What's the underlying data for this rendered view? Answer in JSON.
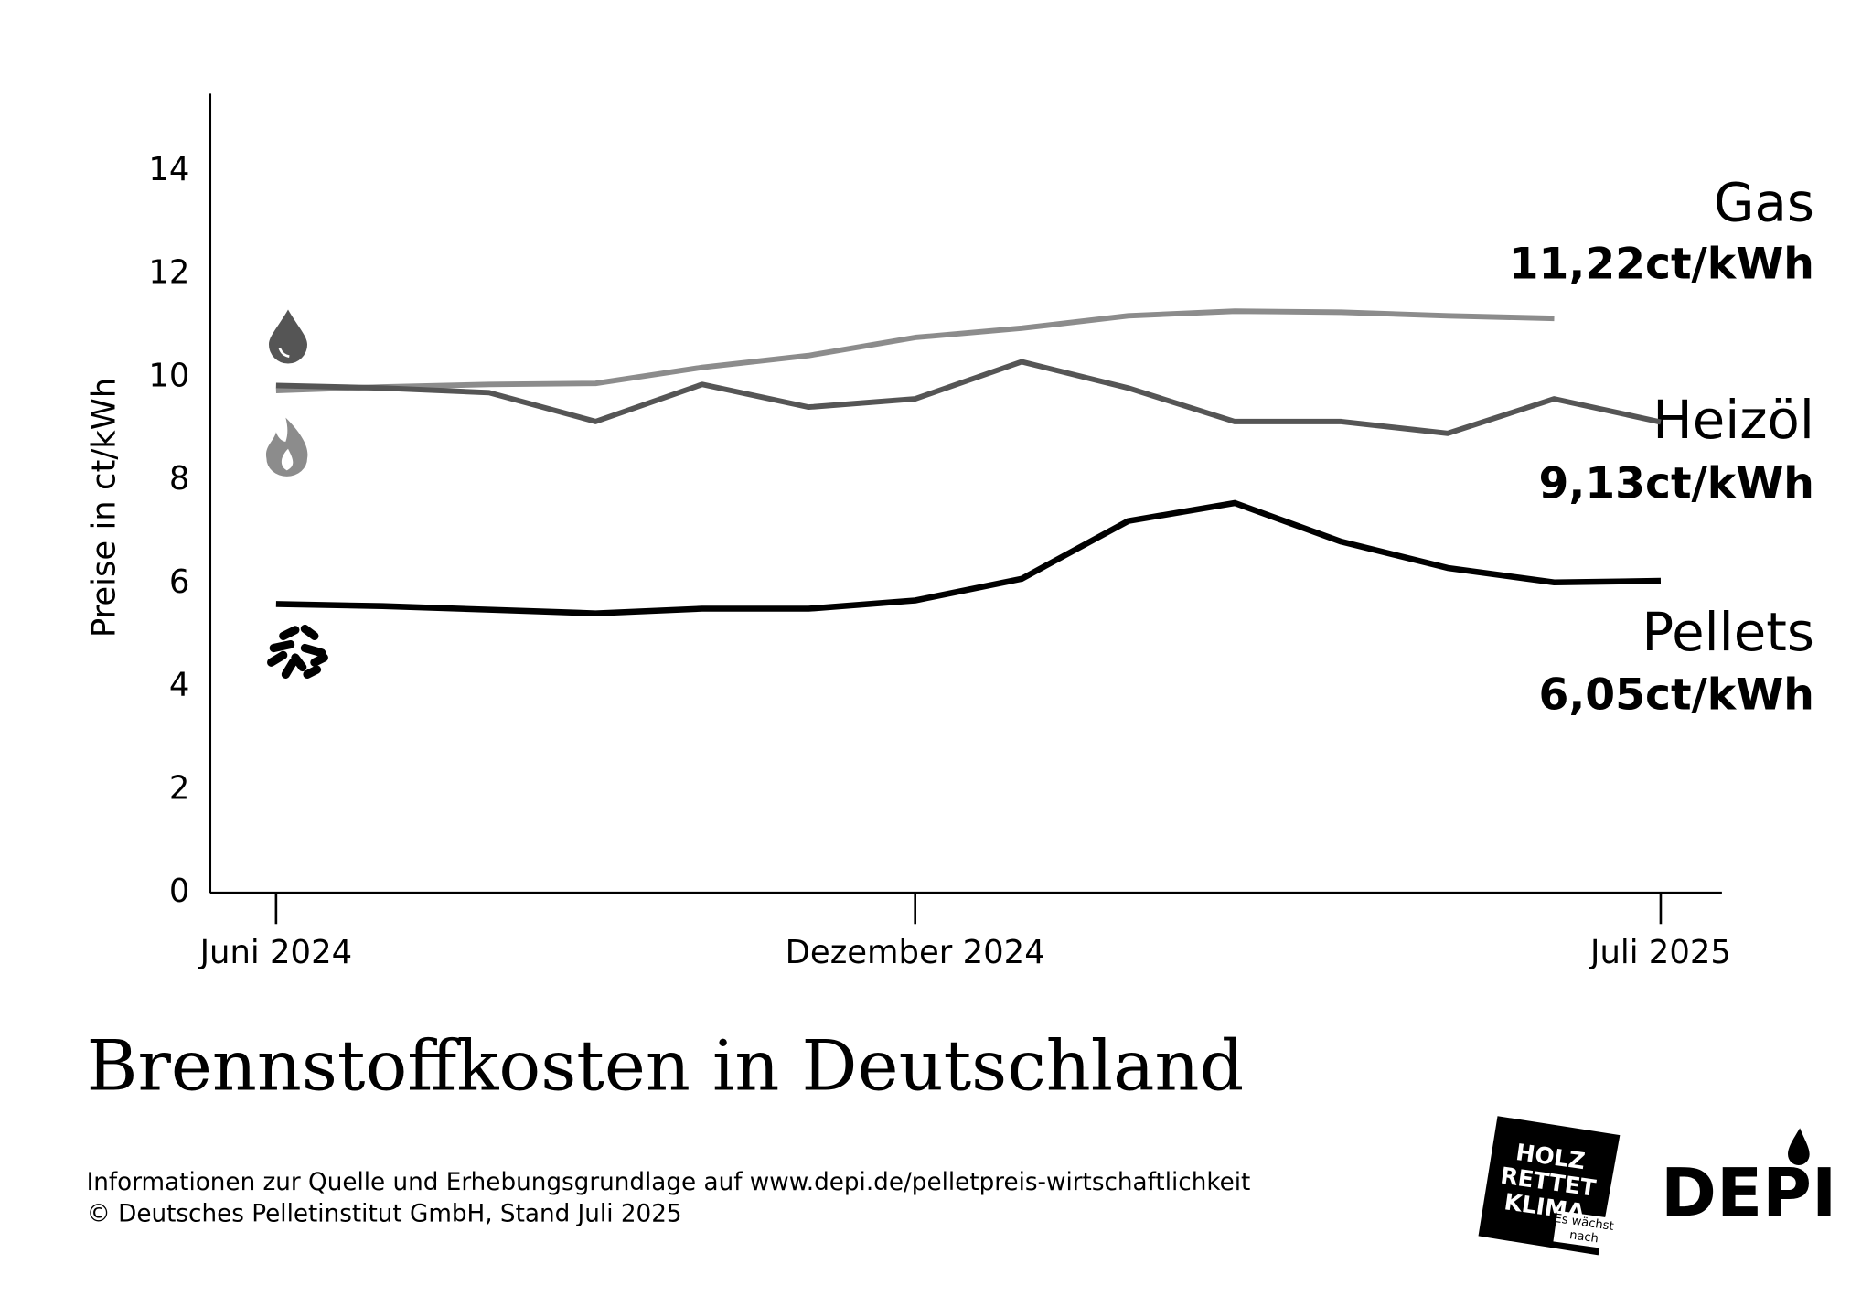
{
  "chart_data": {
    "type": "line",
    "title": "Brennstoffkosten in Deutschland",
    "y_label": "Preise in ct/kWh",
    "categories": [
      "Juni 2024",
      null,
      null,
      null,
      null,
      null,
      "Dezember 2024",
      null,
      null,
      null,
      null,
      null,
      null,
      "Juli 2025"
    ],
    "series": [
      {
        "name": "Gas",
        "color": "#8c8c8c",
        "values": [
          9.74,
          9.81,
          9.86,
          9.88,
          10.19,
          10.42,
          10.77,
          10.95,
          11.19,
          11.28,
          11.26,
          11.19,
          11.14,
          null
        ]
      },
      {
        "name": "Heizöl",
        "color": "#555555",
        "values": [
          9.84,
          9.79,
          9.7,
          9.14,
          9.86,
          9.42,
          9.58,
          10.3,
          9.79,
          9.14,
          9.14,
          8.91,
          9.58,
          9.13
        ]
      },
      {
        "name": "Pellets",
        "color": "#000000",
        "values": [
          5.6,
          5.56,
          5.49,
          5.42,
          5.51,
          5.51,
          5.67,
          6.09,
          7.21,
          7.56,
          6.81,
          6.3,
          6.02,
          6.05
        ]
      }
    ],
    "annotations": [
      "11,22ct/kWh",
      "9,13ct/kWh",
      "6,05ct/kWh"
    ],
    "ylim": [
      0,
      15.5
    ],
    "yticks": [
      0,
      2,
      4,
      6,
      8,
      10,
      12,
      14
    ],
    "grid": false,
    "footer": [
      "Informationen zur Quelle und Erhebungsgrundlage auf www.depi.de/pelletpreis-wirtschaftlichkeit",
      "© Deutsches Pelletinstitut GmbH, Stand Juli 2025"
    ],
    "logos": [
      "HOLZ",
      "RETTET",
      "KLIMA",
      "Es wächst",
      "nach",
      "DEPI"
    ]
  }
}
